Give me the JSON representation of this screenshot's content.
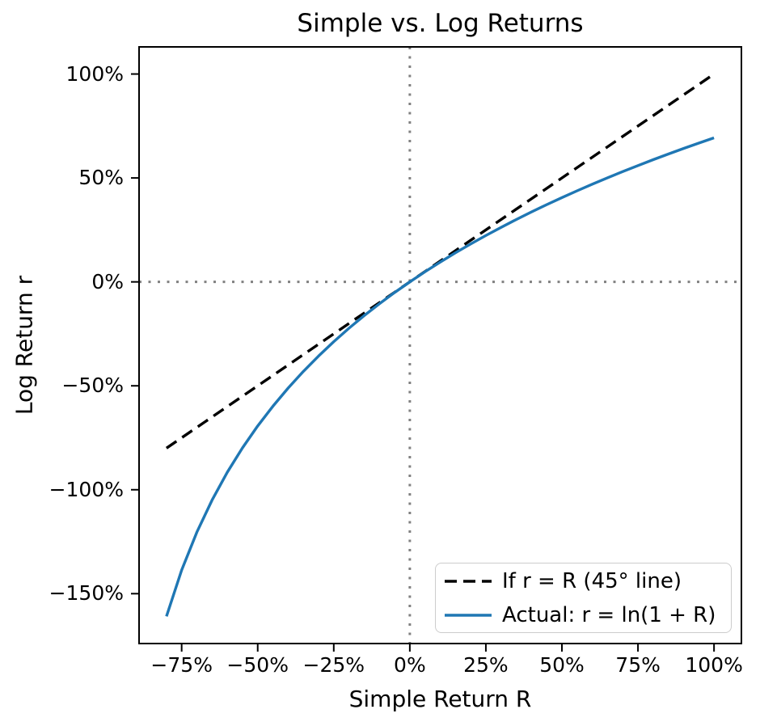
{
  "chart_data": {
    "type": "line",
    "title": "Simple vs. Log Returns",
    "xlabel": "Simple Return R",
    "ylabel": "Log Return r",
    "xlim": [
      -0.89,
      1.09
    ],
    "ylim": [
      -1.7399,
      1.1305
    ],
    "grid": false,
    "legend_position": "lower right",
    "axis_tick_format": "percent",
    "x_ticks": {
      "values": [
        -0.75,
        -0.5,
        -0.25,
        0,
        0.25,
        0.5,
        0.75,
        1.0
      ],
      "labels": [
        "−75%",
        "−50%",
        "−25%",
        "0%",
        "25%",
        "50%",
        "75%",
        "100%"
      ]
    },
    "y_ticks": {
      "values": [
        1.0,
        0.5,
        0,
        -0.5,
        -1.0,
        -1.5
      ],
      "labels": [
        "100%",
        "50%",
        "0%",
        "−50%",
        "−100%",
        "−150%"
      ]
    },
    "reference_lines": [
      {
        "orientation": "vertical",
        "value": 0,
        "style": "dotted",
        "color": "#808080"
      },
      {
        "orientation": "horizontal",
        "value": 0,
        "style": "dotted",
        "color": "#808080"
      }
    ],
    "series": [
      {
        "name": "If r = R (45° line)",
        "color": "#000000",
        "style": "dashed",
        "x": [
          -0.8,
          1.0
        ],
        "y": [
          -0.8,
          1.0
        ]
      },
      {
        "name": "Actual: r = ln(1 + R)",
        "color": "#1f77b4",
        "style": "solid",
        "x": [
          -0.8,
          -0.75,
          -0.7,
          -0.65,
          -0.6,
          -0.55,
          -0.5,
          -0.45,
          -0.4,
          -0.35,
          -0.3,
          -0.25,
          -0.2,
          -0.15,
          -0.1,
          -0.05,
          0,
          0.05,
          0.1,
          0.15,
          0.2,
          0.25,
          0.3,
          0.35,
          0.4,
          0.45,
          0.5,
          0.55,
          0.6,
          0.65,
          0.7,
          0.75,
          0.8,
          0.85,
          0.9,
          0.95,
          1.0
        ],
        "y": [
          -1.6094,
          -1.3863,
          -1.204,
          -1.0498,
          -0.9163,
          -0.7985,
          -0.6931,
          -0.5978,
          -0.5108,
          -0.4308,
          -0.3567,
          -0.2877,
          -0.2231,
          -0.1625,
          -0.1054,
          -0.0513,
          0,
          0.0488,
          0.0953,
          0.1398,
          0.1823,
          0.2231,
          0.2624,
          0.3001,
          0.3365,
          0.3716,
          0.4055,
          0.4383,
          0.47,
          0.5008,
          0.5306,
          0.5596,
          0.5878,
          0.6152,
          0.6419,
          0.6678,
          0.6931
        ]
      }
    ],
    "colors": {
      "actual_line": "#1f77b4",
      "identity_line": "#000000",
      "reference_line": "#808080",
      "axes": "#000000",
      "legend_border": "#cccccc",
      "background": "#ffffff"
    }
  }
}
